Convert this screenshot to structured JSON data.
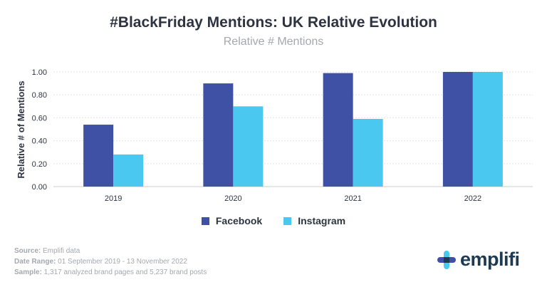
{
  "colors": {
    "facebook": "#3f51a5",
    "instagram": "#4ac8ef",
    "text": "#2d3340",
    "muted": "#a4a8ad"
  },
  "chart_data": {
    "type": "bar",
    "title": "#BlackFriday Mentions: UK Relative Evolution",
    "subtitle": "Relative # Mentions",
    "xlabel": "",
    "ylabel": "Relative # of Mentions",
    "categories": [
      "2019",
      "2020",
      "2021",
      "2022"
    ],
    "series": [
      {
        "name": "Facebook",
        "values": [
          0.54,
          0.9,
          0.99,
          1.0
        ]
      },
      {
        "name": "Instagram",
        "values": [
          0.28,
          0.7,
          0.59,
          1.0
        ]
      }
    ],
    "ylim": [
      0,
      1
    ],
    "yticks": [
      "0.00",
      "0.20",
      "0.40",
      "0.60",
      "0.80",
      "1.00"
    ],
    "grid": true,
    "legend": "bottom-center"
  },
  "footer": {
    "source_label": "Source:",
    "source_value": "Emplifi data",
    "range_label": "Date Range:",
    "range_value": "01 September 2019 - 13 November 2022",
    "sample_label": "Sample:",
    "sample_value": "1,317 analyzed brand pages and 5,237 brand posts"
  },
  "logo": {
    "text": "emplifi",
    "icon": "emplifi-logo-icon"
  }
}
